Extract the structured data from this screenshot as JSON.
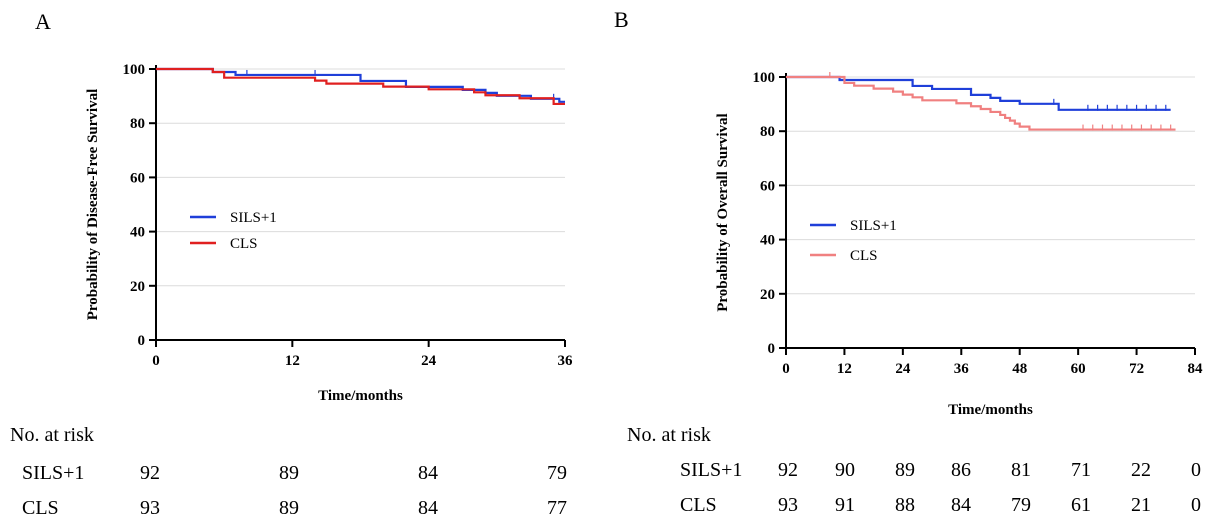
{
  "chart_data": [
    {
      "panel": "A",
      "type": "line",
      "xlabel": "Time/months",
      "ylabel": "Probability of Disease-Free Survival",
      "xlim": [
        0,
        36
      ],
      "ylim": [
        0,
        100
      ],
      "xticks": [
        0,
        12,
        24,
        36
      ],
      "yticks": [
        0,
        20,
        40,
        60,
        80,
        100
      ],
      "grid": "horizontal",
      "legend_position": "center-left",
      "series": [
        {
          "name": "SILS+1",
          "color": "#1f3fd9",
          "x": [
            0,
            4,
            5,
            6,
            7,
            15,
            18,
            22,
            27,
            29,
            30,
            33,
            35.5,
            36
          ],
          "y": [
            100,
            100,
            98.9,
            98.9,
            97.8,
            97.8,
            95.6,
            93.4,
            92.3,
            91.2,
            90.1,
            89.0,
            87.9,
            87.9
          ],
          "censor_x": [
            8,
            14,
            35
          ]
        },
        {
          "name": "CLS",
          "color": "#e02020",
          "x": [
            0,
            4,
            5,
            6,
            11,
            14,
            15,
            20,
            24,
            28,
            29,
            32,
            35,
            36
          ],
          "y": [
            100,
            100,
            98.9,
            96.8,
            96.8,
            95.7,
            94.6,
            93.5,
            92.5,
            91.4,
            90.3,
            89.2,
            87.1,
            87.1
          ],
          "censor_x": []
        }
      ],
      "risk_table": {
        "title": "No. at risk",
        "times": [
          0,
          12,
          24,
          36
        ],
        "rows": [
          {
            "label": "SILS+1",
            "values": [
              "92",
              "89",
              "84",
              "79"
            ]
          },
          {
            "label": "CLS",
            "values": [
              "93",
              "89",
              "84",
              "77"
            ]
          }
        ]
      }
    },
    {
      "panel": "B",
      "type": "line",
      "xlabel": "Time/months",
      "ylabel": "Probability of Overall Survival",
      "xlim": [
        0,
        84
      ],
      "ylim": [
        0,
        100
      ],
      "xticks": [
        0,
        12,
        24,
        36,
        48,
        60,
        72,
        84
      ],
      "yticks": [
        0,
        20,
        40,
        60,
        80,
        100
      ],
      "grid": "horizontal",
      "legend_position": "center-left",
      "series": [
        {
          "name": "SILS+1",
          "color": "#1f3fd9",
          "x": [
            0,
            7,
            11,
            20,
            26,
            30,
            35,
            38,
            42,
            44,
            48,
            55,
            56,
            79
          ],
          "y": [
            100,
            100,
            98.9,
            98.9,
            96.7,
            95.6,
            95.6,
            93.4,
            92.3,
            91.2,
            90.1,
            90.1,
            87.9,
            87.9
          ],
          "censor_x": [
            55,
            62,
            64,
            66,
            68,
            70,
            72,
            74,
            76,
            78
          ]
        },
        {
          "name": "CLS",
          "color": "#f08080",
          "x": [
            0,
            8,
            12,
            14,
            18,
            22,
            24,
            26,
            28,
            32,
            35,
            38,
            40,
            42,
            44,
            45,
            46,
            47,
            48,
            50,
            52,
            80
          ],
          "y": [
            100,
            100,
            97.8,
            96.8,
            95.7,
            94.6,
            93.5,
            92.5,
            91.4,
            91.4,
            90.3,
            89.2,
            88.2,
            87.1,
            86.0,
            84.9,
            83.9,
            82.8,
            81.7,
            80.6,
            80.6,
            80.6
          ],
          "censor_x": [
            9,
            61,
            63,
            65,
            67,
            69,
            71,
            73,
            75,
            77,
            79
          ]
        }
      ],
      "risk_table": {
        "title": "No. at risk",
        "times": [
          0,
          12,
          24,
          36,
          48,
          60,
          72,
          84
        ],
        "rows": [
          {
            "label": "SILS+1",
            "values": [
              "92",
              "90",
              "89",
              "86",
              "81",
              "71",
              "22",
              "0"
            ]
          },
          {
            "label": "CLS",
            "values": [
              "93",
              "91",
              "88",
              "84",
              "79",
              "61",
              "21",
              "0"
            ]
          }
        ]
      }
    }
  ]
}
